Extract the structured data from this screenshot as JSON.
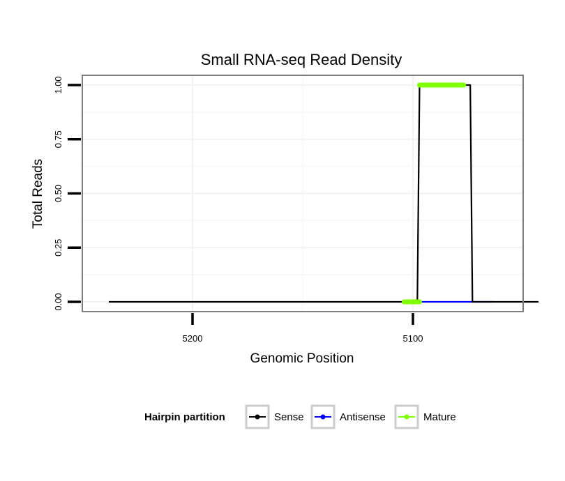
{
  "chart_data": {
    "type": "line",
    "title": "Small RNA-seq Read Density",
    "xlabel": "Genomic Position",
    "ylabel": "Total Reads",
    "x_reversed": true,
    "xlim": [
      5250,
      5050
    ],
    "ylim": [
      -0.045,
      1.045
    ],
    "x_ticks": [
      5200,
      5100
    ],
    "x_tick_labels": [
      "5200",
      "5100"
    ],
    "y_ticks": [
      0,
      0.25,
      0.5,
      0.75,
      1.0
    ],
    "y_tick_labels": [
      "0.00",
      "0.25",
      "0.50",
      "0.75",
      "1.00"
    ],
    "grid": true,
    "legend": {
      "title": "Hairpin partition",
      "position": "bottom",
      "entries": [
        {
          "name": "Sense",
          "color": "#000000"
        },
        {
          "name": "Antisense",
          "color": "#0000ff"
        },
        {
          "name": "Mature",
          "color": "#7fff00"
        }
      ]
    },
    "series": [
      {
        "name": "Antisense",
        "color": "#0000ff",
        "x": [
          5101,
          5064
        ],
        "y": [
          0,
          0
        ]
      },
      {
        "name": "Sense",
        "color": "#000000",
        "x": [
          5238,
          5098,
          5097,
          5074,
          5073,
          5043
        ],
        "y": [
          0,
          0,
          1,
          1,
          0,
          0
        ]
      },
      {
        "name": "Mature",
        "color": "#7fff00",
        "segments": [
          {
            "x": [
              5104,
              5097
            ],
            "y": [
              0,
              0
            ]
          },
          {
            "x": [
              5097,
              5077
            ],
            "y": [
              1,
              1
            ]
          }
        ]
      }
    ]
  }
}
